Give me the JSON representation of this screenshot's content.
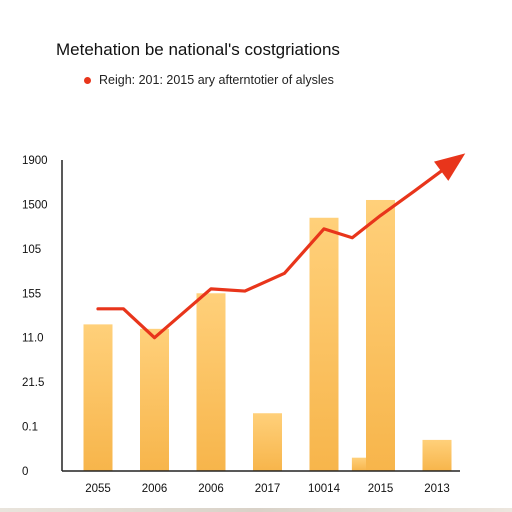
{
  "title": "Metehation be national's costgriations",
  "legend": {
    "text": "Reigh: 201: 2015 ary afterntotier of alysles"
  },
  "colors": {
    "bar_top": "#ffd07a",
    "bar_bottom": "#f7b54b",
    "line": "#e8351b",
    "axis": "#222222"
  },
  "chart_data": {
    "type": "bar",
    "title": "Metehation be national's costgriations",
    "xlabel": "",
    "ylabel": "",
    "y_tick_labels": [
      "0",
      "0.1",
      "21.5",
      "11.0",
      "155",
      "105",
      "1500",
      "1900"
    ],
    "y_tick_values": [
      0,
      1,
      2,
      3,
      4,
      5,
      6,
      7
    ],
    "ylim": [
      0,
      7
    ],
    "categories": [
      "2055",
      "2006",
      "2006",
      "2017",
      "10014",
      "2015",
      "2013"
    ],
    "bars": [
      {
        "x": 0.0,
        "value": 3.3
      },
      {
        "x": 1.0,
        "value": 3.2
      },
      {
        "x": 2.0,
        "value": 4.0
      },
      {
        "x": 3.0,
        "value": 1.3
      },
      {
        "x": 4.0,
        "value": 5.7
      },
      {
        "x": 4.75,
        "value": 0.3
      },
      {
        "x": 5.0,
        "value": 6.1
      },
      {
        "x": 6.0,
        "value": 0.7
      }
    ],
    "line": {
      "points": [
        {
          "x": 0.0,
          "y": 3.65
        },
        {
          "x": 0.45,
          "y": 3.65
        },
        {
          "x": 1.0,
          "y": 3.0
        },
        {
          "x": 2.0,
          "y": 4.1
        },
        {
          "x": 2.6,
          "y": 4.05
        },
        {
          "x": 3.3,
          "y": 4.45
        },
        {
          "x": 4.0,
          "y": 5.45
        },
        {
          "x": 4.5,
          "y": 5.25
        },
        {
          "x": 5.0,
          "y": 5.75
        },
        {
          "x": 5.6,
          "y": 6.3
        },
        {
          "x": 6.5,
          "y": 7.15
        }
      ],
      "arrow_end": true
    },
    "grid": false,
    "legend_position": "top-left"
  }
}
